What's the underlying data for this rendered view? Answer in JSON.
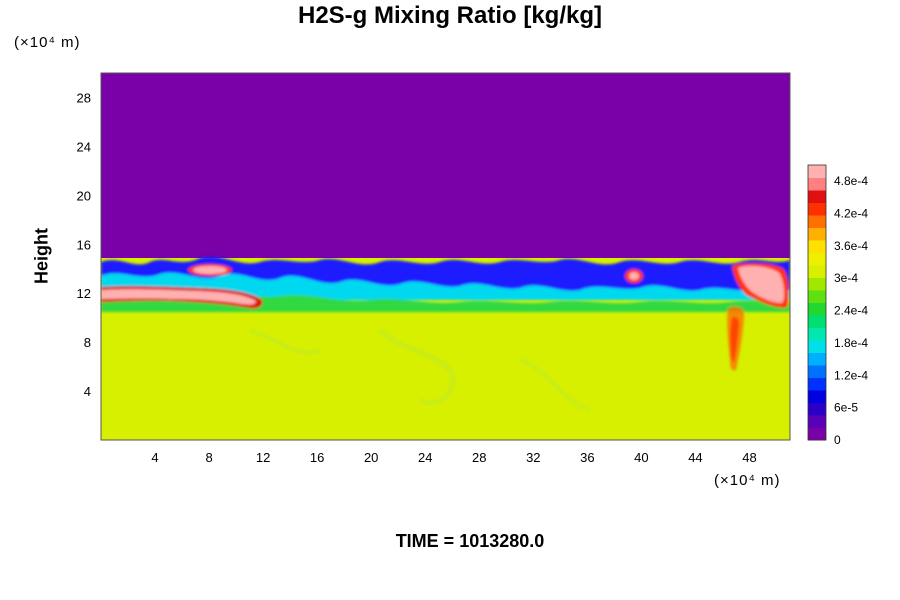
{
  "chart_data": {
    "type": "heatmap",
    "title": "H2S-g Mixing Ratio [kg/kg]",
    "ylabel": "Height",
    "x_unit_label": "(×10⁴ m)",
    "y_unit_label": "(×10⁴ m)",
    "footer": "TIME = 1013280.0",
    "xlim": [
      0,
      51
    ],
    "ylim": [
      0,
      30
    ],
    "x_ticks": [
      4,
      8,
      12,
      16,
      20,
      24,
      28,
      32,
      36,
      40,
      44,
      48
    ],
    "y_ticks": [
      4,
      8,
      12,
      16,
      20,
      24,
      28
    ],
    "colorbar": {
      "min": 0,
      "max": 0.00051,
      "tick_values": [
        0,
        6e-05,
        0.00012,
        0.00018,
        0.00024,
        0.0003,
        0.00036,
        0.00042,
        0.00048
      ],
      "tick_labels": [
        "0",
        "6e-5",
        "1.2e-4",
        "1.8e-4",
        "2.4e-4",
        "3e-4",
        "3.6e-4",
        "4.2e-4",
        "4.8e-4"
      ],
      "colors": [
        "#7a00a8",
        "#5a00b8",
        "#2a00c8",
        "#0000e0",
        "#0030ff",
        "#0070ff",
        "#00b0ff",
        "#00e0e8",
        "#00e8b0",
        "#00e070",
        "#20d830",
        "#60e010",
        "#a0e800",
        "#d8f000",
        "#eef000",
        "#ffe000",
        "#ffb000",
        "#ff7000",
        "#ff3000",
        "#e01010",
        "#ff8080",
        "#ffb0b0"
      ]
    },
    "regions": {
      "upper_value": 0,
      "lower_value": 0.00036,
      "interface_height": 13.5,
      "features": [
        {
          "label": "high-concentration filament",
          "x": [
            0,
            13
          ],
          "y": [
            11,
            12.2
          ],
          "value": 0.0005
        },
        {
          "label": "plume",
          "x": [
            46,
            51
          ],
          "y": [
            10.5,
            14
          ],
          "value": 0.0005
        }
      ]
    }
  }
}
